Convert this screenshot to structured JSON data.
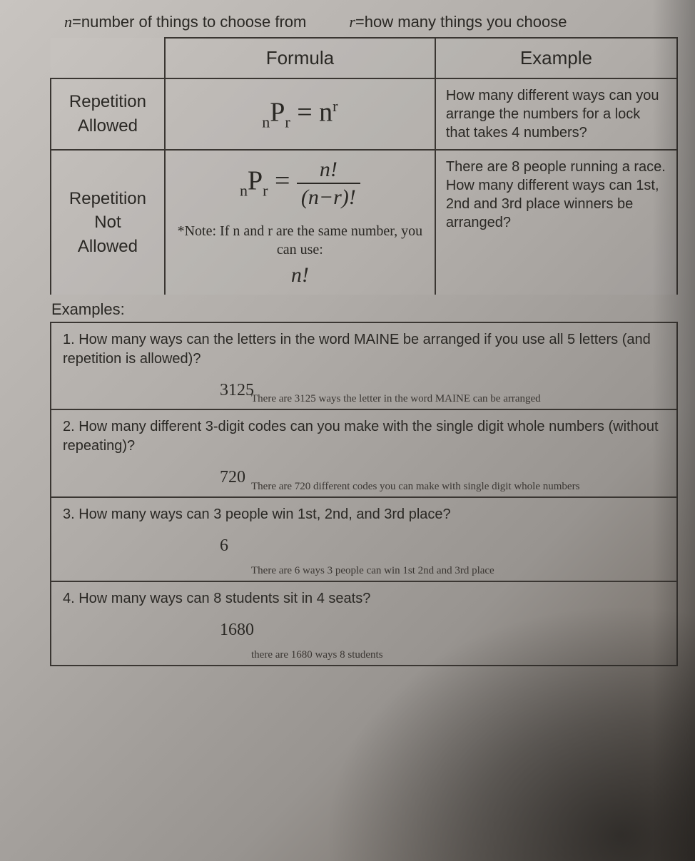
{
  "defs": {
    "n_var": "n",
    "n_text": "=number of things to choose from",
    "r_var": "r",
    "r_text": "=how many things you choose"
  },
  "table": {
    "header_formula": "Formula",
    "header_example": "Example",
    "row1": {
      "label_line1": "Repetition",
      "label_line2": "Allowed",
      "formula_left_sub": "n",
      "formula_P": "P",
      "formula_right_sub": "r",
      "formula_eq": " = n",
      "formula_sup": "r",
      "example": "How many different ways can you arrange the numbers for a lock that takes 4 numbers?"
    },
    "row2": {
      "label_line1": "Repetition",
      "label_line2": "Not",
      "label_line3": "Allowed",
      "formula_left_sub": "n",
      "formula_P": "P",
      "formula_right_sub": "r",
      "formula_eq": " = ",
      "frac_num": "n!",
      "frac_den": "(n−r)!",
      "note": "*Note: If n and r are the same number, you can use:",
      "nfact": "n!",
      "example": "There are 8 people running a race. How many different ways can 1st, 2nd and 3rd place winners be arranged?"
    }
  },
  "examples_label": "Examples:",
  "examples": [
    {
      "q": "1. How many ways can the letters in the word MAINE be arranged if you use all 5 letters (and repetition is allowed)?",
      "ans": "3125",
      "sentence": "There are 3125 ways the letter in the word MAINE can be arranged"
    },
    {
      "q": "2. How many different 3-digit codes can you make with the single digit whole numbers (without repeating)?",
      "ans": "720",
      "sentence": "There are 720 different codes you can make with single digit whole numbers"
    },
    {
      "q": "3. How many ways can 3 people win 1st, 2nd, and 3rd place?",
      "ans": "6",
      "sentence": "There are 6 ways 3 people can win 1st 2nd and 3rd place"
    },
    {
      "q": "4. How many ways can 8 students sit in 4 seats?",
      "ans": "1680",
      "sentence": "there are 1680 ways 8 students"
    }
  ],
  "colors": {
    "text": "#2a2824",
    "border": "#3a3632"
  }
}
